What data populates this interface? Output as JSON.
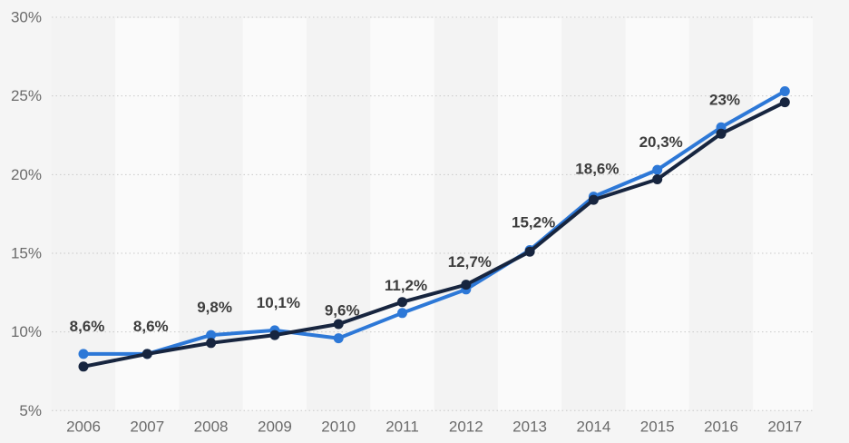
{
  "chart_data": {
    "type": "line",
    "title": "",
    "categories": [
      "2006",
      "2007",
      "2008",
      "2009",
      "2010",
      "2011",
      "2012",
      "2013",
      "2014",
      "2015",
      "2016",
      "2017"
    ],
    "series": [
      {
        "name": "share-blue",
        "color": "#2d78d7",
        "values": [
          8.6,
          8.6,
          9.8,
          10.1,
          9.6,
          11.2,
          12.7,
          15.2,
          18.6,
          20.3,
          23.0,
          25.3
        ]
      },
      {
        "name": "share-navy",
        "color": "#17253f",
        "values": [
          7.8,
          8.6,
          9.3,
          9.8,
          10.5,
          11.9,
          13.0,
          15.1,
          18.4,
          19.7,
          22.6,
          24.6
        ]
      }
    ],
    "data_labels": {
      "attached_to": "share-blue",
      "texts": [
        "8,6%",
        "8,6%",
        "9,8%",
        "10,1%",
        "9,6%",
        "11,2%",
        "12,7%",
        "15,2%",
        "18,6%",
        "20,3%",
        "23%",
        ""
      ]
    },
    "xlabel": "",
    "ylabel": "",
    "ylim": [
      5,
      30
    ],
    "ytick_values": [
      5,
      10,
      15,
      20,
      25,
      30
    ],
    "ytick_labels": [
      "5%",
      "10%",
      "15%",
      "20%",
      "25%",
      "30%"
    ],
    "grid": "horizontal-dotted",
    "legend": "none",
    "plot_bands": "alternating-vertical-per-category"
  },
  "colors": {
    "background": "#f5f5f5",
    "band_dark": "#f3f3f3",
    "band_light": "#fafafa",
    "gridline": "#c9c9c9",
    "axis_label": "#6b6b6b",
    "data_label": "#3d3d3d",
    "series_blue": "#2d78d7",
    "series_navy": "#17253f"
  }
}
